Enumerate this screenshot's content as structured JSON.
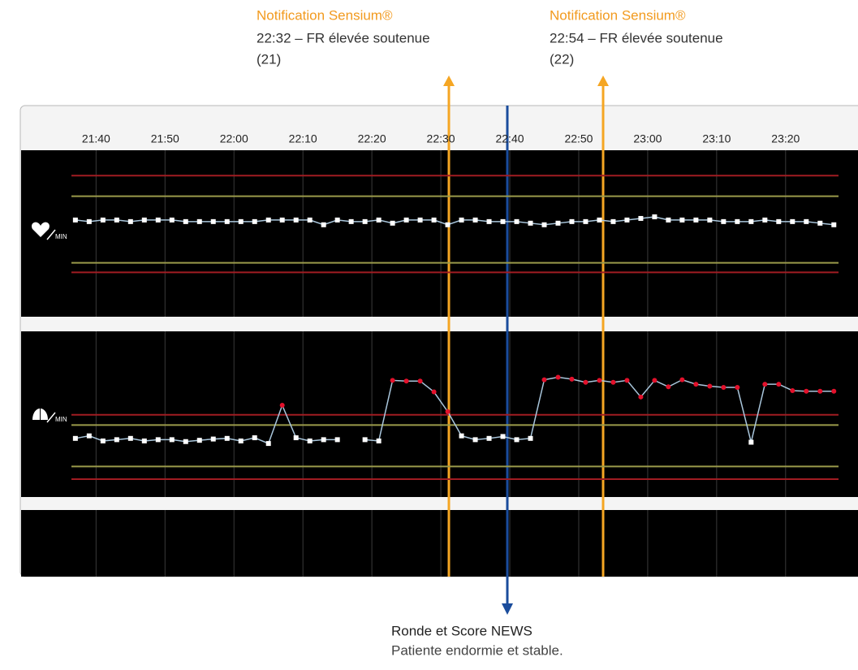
{
  "annotations": [
    {
      "title": "Notification Sensium®",
      "lines": [
        "22:32 – FR élevée soutenue",
        "(21)"
      ]
    },
    {
      "title": "Notification Sensium®",
      "lines": [
        "22:54 – FR élevée soutenue",
        "(22)"
      ]
    }
  ],
  "footer": {
    "title": "Ronde et Score NEWS",
    "text": "Patiente endormie et stable."
  },
  "unit": "MIN",
  "chart_data": [
    {
      "type": "line",
      "x": [
        1297,
        1299,
        1301,
        1303,
        1305,
        1307,
        1309,
        1311,
        1313,
        1315,
        1317,
        1319,
        1321,
        1323,
        1325,
        1327,
        1329,
        1331,
        1333,
        1335,
        1337,
        1339,
        1341,
        1343,
        1345,
        1347,
        1349,
        1351,
        1353,
        1355,
        1357,
        1359,
        1361,
        1363,
        1365,
        1367,
        1369,
        1371,
        1373,
        1375,
        1377,
        1379,
        1381,
        1383,
        1385,
        1387,
        1389,
        1391,
        1393,
        1395,
        1397,
        1399,
        1401,
        1403,
        1405,
        1407
      ],
      "xlim": [
        1289.6,
        1410.5
      ],
      "xticks": [
        {
          "value": 1300,
          "label": "21:40"
        },
        {
          "value": 1310,
          "label": "21:50"
        },
        {
          "value": 1320,
          "label": "22:00"
        },
        {
          "value": 1330,
          "label": "22:10"
        },
        {
          "value": 1340,
          "label": "22:20"
        },
        {
          "value": 1350,
          "label": "22:30"
        },
        {
          "value": 1360,
          "label": "22:40"
        },
        {
          "value": 1370,
          "label": "22:50"
        },
        {
          "value": 1380,
          "label": "23:00"
        },
        {
          "value": 1390,
          "label": "23:10"
        },
        {
          "value": 1400,
          "label": "23:20"
        }
      ],
      "ylim": [
        30,
        135
      ],
      "thresholds": [
        {
          "value": 119,
          "color": "#a01c22"
        },
        {
          "value": 106,
          "color": "#9a9a4a"
        },
        {
          "value": 64,
          "color": "#9a9a4a"
        },
        {
          "value": 58,
          "color": "#a01c22"
        }
      ],
      "series": [
        {
          "color": "#ffffff",
          "line_color": "#a9c6dc",
          "alert_color": "#e3112b",
          "values": [
            91,
            90,
            91,
            91,
            90,
            91,
            91,
            91,
            90,
            90,
            90,
            90,
            90,
            90,
            91,
            91,
            91,
            91,
            88,
            91,
            90,
            90,
            91,
            89,
            91,
            91,
            91,
            88,
            91,
            91,
            90,
            90,
            90,
            89,
            88,
            89,
            90,
            90,
            91,
            90,
            91,
            92,
            93,
            91,
            91,
            91,
            91,
            90,
            90,
            90,
            91,
            90,
            90,
            90,
            89,
            88
          ]
        }
      ]
    },
    {
      "type": "line",
      "x": [
        1297,
        1299,
        1301,
        1303,
        1305,
        1307,
        1309,
        1311,
        1313,
        1315,
        1317,
        1319,
        1321,
        1323,
        1325,
        1327,
        1329,
        1331,
        1333,
        1335,
        1337,
        1339,
        1341,
        1343,
        1345,
        1347,
        1349,
        1351,
        1353,
        1355,
        1357,
        1359,
        1361,
        1363,
        1365,
        1367,
        1369,
        1371,
        1373,
        1375,
        1377,
        1379,
        1381,
        1383,
        1385,
        1387,
        1389,
        1391,
        1393,
        1395,
        1397,
        1399,
        1401,
        1403,
        1405,
        1407
      ],
      "xlim": [
        1289.6,
        1410.5
      ],
      "ylim": [
        4,
        30
      ],
      "thresholds": [
        {
          "value": 16.9,
          "color": "#a01c22"
        },
        {
          "value": 15.3,
          "color": "#9a9a4a"
        },
        {
          "value": 8.8,
          "color": "#9a9a4a"
        },
        {
          "value": 6.8,
          "color": "#a01c22"
        }
      ],
      "series": [
        {
          "color": "#ffffff",
          "line_color": "#a9c6dc",
          "alert_color": "#e3112b",
          "values": [
            13.2,
            13.6,
            12.8,
            13.0,
            13.2,
            12.8,
            13.0,
            13.0,
            12.7,
            12.9,
            13.1,
            13.2,
            12.8,
            13.3,
            12.4,
            18.4,
            13.3,
            12.8,
            13.0,
            13.0,
            null,
            13.0,
            12.8,
            22.3,
            22.2,
            22.2,
            20.5,
            17.4,
            13.6,
            13.0,
            13.2,
            13.5,
            13.0,
            13.2,
            22.4,
            22.8,
            22.5,
            22.0,
            22.3,
            22.0,
            22.3,
            19.7,
            22.3,
            21.3,
            22.4,
            21.7,
            21.4,
            21.2,
            21.2,
            12.6,
            21.7,
            21.7,
            20.7,
            20.6,
            20.6,
            20.6
          ]
        }
      ]
    }
  ]
}
